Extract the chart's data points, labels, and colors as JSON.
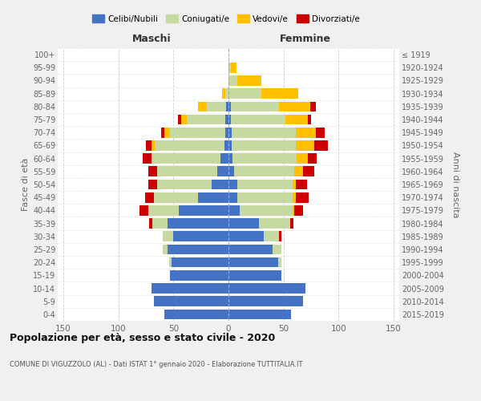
{
  "age_groups": [
    "0-4",
    "5-9",
    "10-14",
    "15-19",
    "20-24",
    "25-29",
    "30-34",
    "35-39",
    "40-44",
    "45-49",
    "50-54",
    "55-59",
    "60-64",
    "65-69",
    "70-74",
    "75-79",
    "80-84",
    "85-89",
    "90-94",
    "95-99",
    "100+"
  ],
  "birth_years": [
    "2015-2019",
    "2010-2014",
    "2005-2009",
    "2000-2004",
    "1995-1999",
    "1990-1994",
    "1985-1989",
    "1980-1984",
    "1975-1979",
    "1970-1974",
    "1965-1969",
    "1960-1964",
    "1955-1959",
    "1950-1954",
    "1945-1949",
    "1940-1944",
    "1935-1939",
    "1930-1934",
    "1925-1929",
    "1920-1924",
    "≤ 1919"
  ],
  "maschi": {
    "celibi": [
      58,
      68,
      70,
      53,
      52,
      55,
      50,
      55,
      45,
      28,
      15,
      10,
      7,
      4,
      3,
      3,
      2,
      0,
      0,
      0,
      0
    ],
    "coniugati": [
      0,
      0,
      0,
      0,
      2,
      5,
      10,
      14,
      28,
      40,
      50,
      55,
      63,
      63,
      50,
      35,
      18,
      3,
      0,
      0,
      0
    ],
    "vedovi": [
      0,
      0,
      0,
      0,
      0,
      0,
      0,
      0,
      0,
      0,
      0,
      0,
      0,
      3,
      5,
      5,
      8,
      3,
      0,
      0,
      0
    ],
    "divorziati": [
      0,
      0,
      0,
      0,
      0,
      0,
      0,
      3,
      8,
      8,
      8,
      8,
      8,
      5,
      3,
      3,
      0,
      0,
      0,
      0,
      0
    ]
  },
  "femmine": {
    "nubili": [
      57,
      68,
      70,
      48,
      45,
      40,
      32,
      28,
      10,
      8,
      8,
      5,
      4,
      3,
      3,
      2,
      2,
      0,
      0,
      0,
      0
    ],
    "coniugate": [
      0,
      0,
      0,
      0,
      3,
      8,
      14,
      28,
      48,
      50,
      50,
      55,
      58,
      58,
      58,
      50,
      44,
      30,
      8,
      2,
      0
    ],
    "vedove": [
      0,
      0,
      0,
      0,
      0,
      0,
      0,
      0,
      2,
      3,
      3,
      8,
      10,
      17,
      18,
      20,
      28,
      33,
      22,
      5,
      0
    ],
    "divorziate": [
      0,
      0,
      0,
      0,
      0,
      0,
      2,
      3,
      8,
      12,
      10,
      10,
      8,
      12,
      8,
      3,
      5,
      0,
      0,
      0,
      0
    ]
  },
  "colors": {
    "celibi": "#4472c4",
    "coniugati": "#c5d9a0",
    "vedovi": "#ffc000",
    "divorziati": "#cc0000"
  },
  "xlim": 155,
  "title": "Popolazione per età, sesso e stato civile - 2020",
  "subtitle": "COMUNE DI VIGUZZOLO (AL) - Dati ISTAT 1° gennaio 2020 - Elaborazione TUTTITALIA.IT",
  "xlabel_left": "Maschi",
  "xlabel_right": "Femmine",
  "ylabel_left": "Fasce di età",
  "ylabel_right": "Anni di nascita",
  "bg_color": "#f0f0f0",
  "plot_bg_color": "#ffffff"
}
